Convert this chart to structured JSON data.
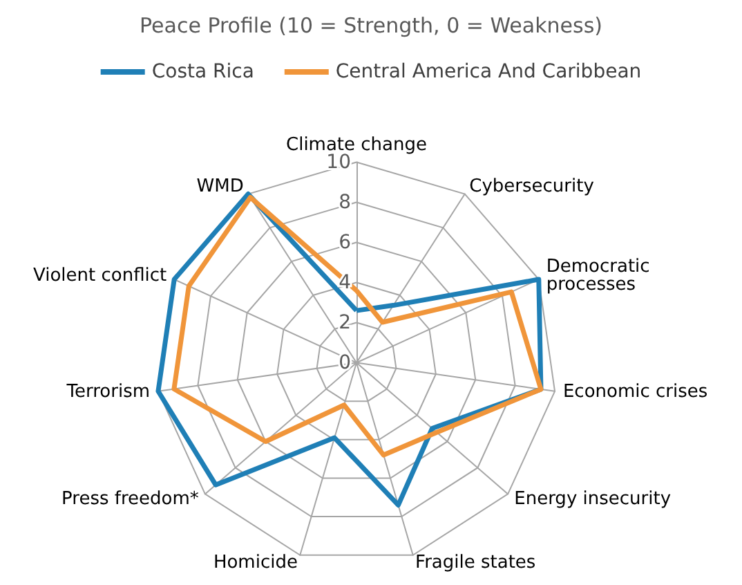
{
  "chart_data": {
    "type": "radar",
    "title": "Peace Profile (10 = Strength, 0 = Weakness)",
    "categories": [
      "Climate change",
      "Cybersecurity",
      "Democratic processes",
      "Economic crises",
      "Energy insecurity",
      "Fragile states",
      "Homicide",
      "Press freedom*",
      "Terrorism",
      "Violent conflict",
      "WMD"
    ],
    "series": [
      {
        "name": "Costa Rica",
        "color": "#1f7fb6",
        "values": [
          2.6,
          3.4,
          10,
          9.3,
          5,
          7.4,
          3.9,
          9.3,
          10,
          10,
          10
        ]
      },
      {
        "name": "Central America And Caribbean",
        "color": "#f0953a",
        "values": [
          3.6,
          2.4,
          8.5,
          9.3,
          5.3,
          4.8,
          2.2,
          6,
          9.2,
          9.2,
          9.8
        ]
      }
    ],
    "ylim": [
      0,
      10
    ],
    "yticks": [
      0,
      2,
      4,
      6,
      8,
      10
    ],
    "grid": true,
    "legend": "top",
    "marker": "none",
    "line_style": "solid"
  }
}
